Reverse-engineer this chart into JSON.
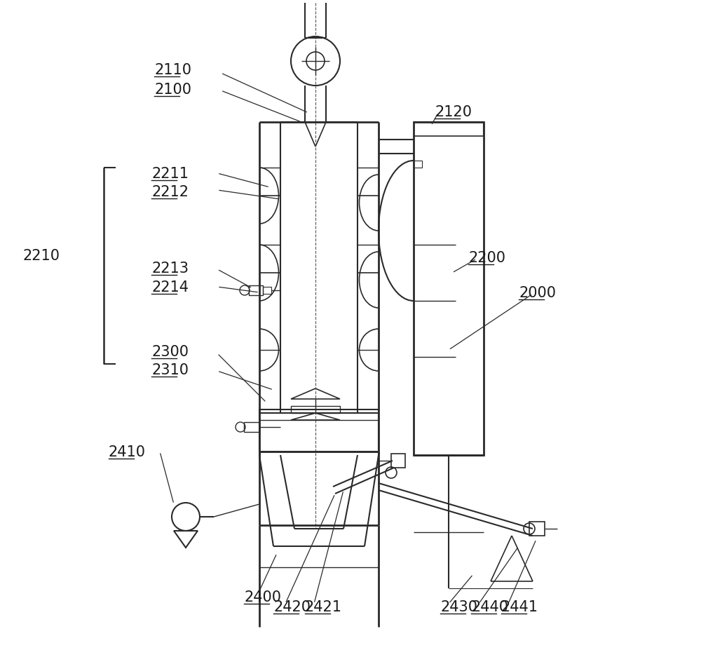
{
  "bg_color": "#ffffff",
  "line_color": "#2a2a2a",
  "label_color": "#1a1a1a",
  "fig_width": 10.0,
  "fig_height": 9.28,
  "label_fontsize": 15
}
